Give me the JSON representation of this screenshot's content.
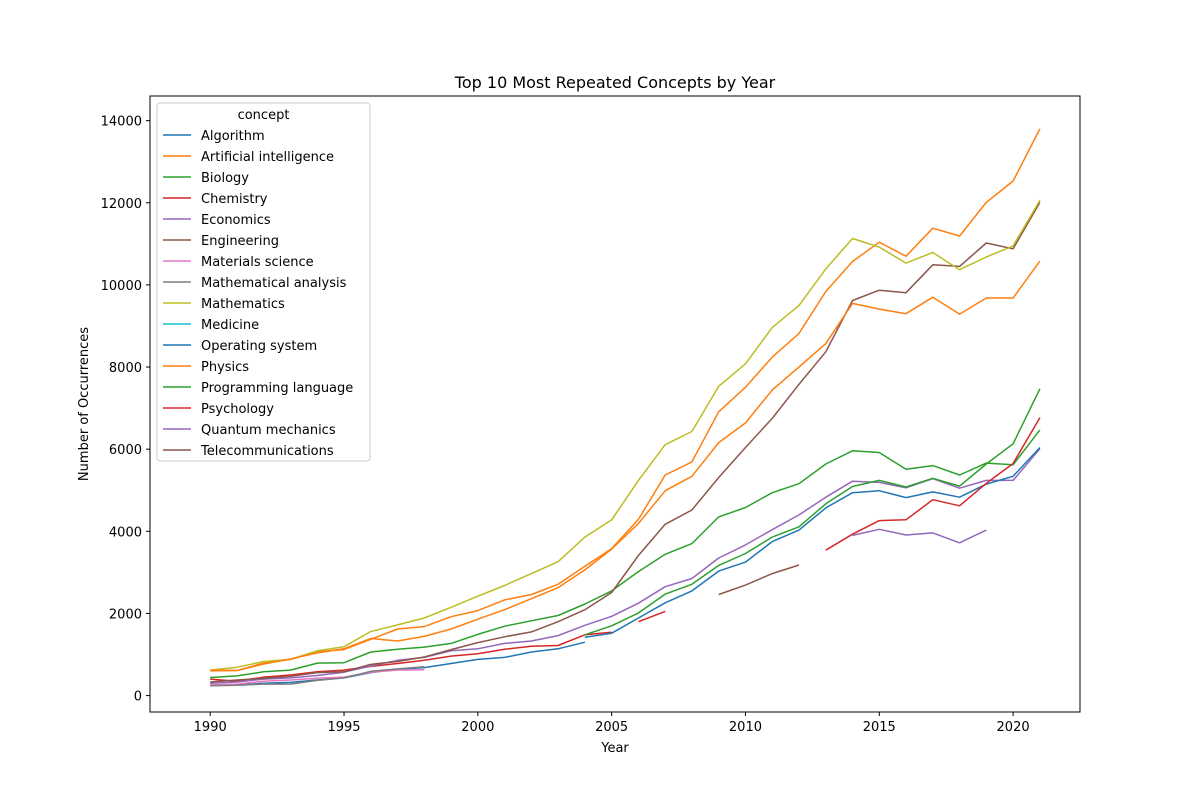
{
  "chart_data": {
    "type": "line",
    "title": "Top 10 Most Repeated Concepts by Year",
    "xlabel": "Year",
    "ylabel": "Number of Occurrences",
    "xlim": [
      1987.75,
      2022.5
    ],
    "ylim": [
      -400,
      14600
    ],
    "xticks": [
      1990,
      1995,
      2000,
      2005,
      2010,
      2015,
      2020
    ],
    "yticks": [
      0,
      2000,
      4000,
      6000,
      8000,
      10000,
      12000,
      14000
    ],
    "legend_title": "concept",
    "legend_position": "upper-left",
    "grid": false,
    "series": [
      {
        "name": "Algorithm",
        "color": "#1f77b4",
        "x": [
          1990,
          1991,
          1992,
          1993,
          1994,
          1995,
          1996,
          1997,
          1998,
          1999,
          2000,
          2001,
          2002,
          2003,
          2004
        ],
        "y": [
          250,
          260,
          300,
          320,
          380,
          430,
          560,
          640,
          680,
          780,
          880,
          930,
          1060,
          1140,
          1300
        ]
      },
      {
        "name": "Artificial intelligence",
        "color": "#ff7f0e",
        "x": [
          1990,
          1991,
          1992,
          1993,
          1994,
          1995,
          1996,
          1997,
          1998,
          1999,
          2000,
          2001,
          2002,
          2003,
          2004,
          2005,
          2006,
          2007,
          2008,
          2009,
          2010,
          2011,
          2012,
          2013,
          2014,
          2015,
          2016,
          2017,
          2018,
          2019,
          2020,
          2021
        ],
        "y": [
          600,
          610,
          790,
          880,
          1070,
          1120,
          1370,
          1620,
          1680,
          1920,
          2070,
          2330,
          2460,
          2710,
          3150,
          3580,
          4290,
          5370,
          5690,
          6910,
          7510,
          8240,
          8820,
          9840,
          10570,
          11040,
          10700,
          11380,
          11190,
          12010,
          12530,
          13800
        ]
      },
      {
        "name": "Biology",
        "color": "#2ca02c",
        "x": [
          1990,
          1991,
          1992,
          1993,
          1994,
          1995,
          1996,
          1997,
          1998,
          1999,
          2000,
          2001,
          2002,
          2003,
          2004,
          2005,
          2006,
          2007,
          2008,
          2009,
          2010,
          2011,
          2012,
          2013,
          2014,
          2015,
          2016,
          2017,
          2018,
          2019,
          2020,
          2021
        ],
        "y": [
          440,
          480,
          580,
          620,
          790,
          800,
          1060,
          1130,
          1180,
          1270,
          1490,
          1690,
          1820,
          1950,
          2230,
          2550,
          3020,
          3440,
          3700,
          4350,
          4580,
          4940,
          5160,
          5640,
          5960,
          5920,
          5510,
          5600,
          5370,
          5660,
          5620,
          6470
        ]
      },
      {
        "name": "Chemistry",
        "color": "#d62728",
        "x": [
          1990,
          1991,
          1992,
          1993,
          1994,
          1995,
          1996,
          1997,
          1998,
          1999,
          2000,
          2001,
          2002,
          2003,
          2004,
          2005
        ],
        "y": [
          400,
          350,
          450,
          500,
          580,
          620,
          710,
          780,
          860,
          960,
          1020,
          1130,
          1200,
          1220,
          1480,
          1540
        ]
      },
      {
        "name": "Economics",
        "color": "#9467bd",
        "x": [
          1990,
          1991,
          1992,
          1993,
          1994,
          1995,
          1996,
          1997,
          1998,
          1999,
          2000,
          2001,
          2002,
          2003,
          2004,
          2005,
          2006,
          2007,
          2008,
          2009,
          2010,
          2011,
          2012,
          2013,
          2014,
          2015,
          2016,
          2017,
          2018,
          2019,
          2020,
          2021
        ],
        "y": [
          300,
          330,
          400,
          430,
          490,
          570,
          720,
          860,
          930,
          1090,
          1140,
          1270,
          1330,
          1460,
          1710,
          1930,
          2250,
          2650,
          2850,
          3350,
          3670,
          4040,
          4400,
          4830,
          5220,
          5190,
          5060,
          5280,
          5050,
          5240,
          5240,
          6010
        ]
      },
      {
        "name": "Engineering",
        "color": "#8c564b",
        "x": [
          1990,
          1991,
          1992,
          1993,
          1994,
          1995,
          1996,
          1997,
          1998,
          1999,
          2000,
          2001,
          2002,
          2003,
          2004,
          2005,
          2006,
          2007,
          2008,
          2009,
          2010,
          2011,
          2012,
          2013,
          2014,
          2015,
          2016,
          2017,
          2018,
          2019,
          2020,
          2021
        ],
        "y": [
          330,
          380,
          420,
          470,
          560,
          580,
          760,
          830,
          940,
          1120,
          1290,
          1430,
          1550,
          1800,
          2090,
          2510,
          3410,
          4170,
          4520,
          5310,
          6040,
          6750,
          7580,
          8370,
          9620,
          9870,
          9810,
          10490,
          10450,
          11020,
          10880,
          12010
        ]
      },
      {
        "name": "Materials science",
        "color": "#e377c2",
        "x": [
          1990,
          1991,
          1992,
          1993,
          1994,
          1995,
          1996,
          1997,
          1998
        ],
        "y": [
          260,
          280,
          350,
          380,
          420,
          450,
          570,
          620,
          630
        ]
      },
      {
        "name": "Mathematical analysis",
        "color": "#7f7f7f",
        "x": [
          1990,
          1991,
          1992,
          1993,
          1994,
          1995,
          1996,
          1997,
          1998
        ],
        "y": [
          240,
          250,
          280,
          280,
          370,
          430,
          590,
          650,
          700
        ]
      },
      {
        "name": "Mathematics",
        "color": "#bcbd22",
        "x": [
          1990,
          1991,
          1992,
          1993,
          1994,
          1995,
          1996,
          1997,
          1998,
          1999,
          2000,
          2001,
          2002,
          2003,
          2004,
          2005,
          2006,
          2007,
          2008,
          2009,
          2010,
          2011,
          2012,
          2013,
          2014,
          2015,
          2016,
          2017,
          2018,
          2019,
          2020,
          2021
        ],
        "y": [
          620,
          690,
          830,
          880,
          1090,
          1190,
          1560,
          1720,
          1890,
          2150,
          2420,
          2680,
          2970,
          3260,
          3860,
          4280,
          5240,
          6110,
          6430,
          7530,
          8080,
          8960,
          9500,
          10390,
          11130,
          10920,
          10530,
          10790,
          10370,
          10680,
          10950,
          12060
        ]
      },
      {
        "name": "Medicine",
        "color": "#17becf",
        "x": [],
        "y": []
      },
      {
        "name": "Operating system",
        "color": "#1f77b4",
        "x": [
          2004,
          2005,
          2006,
          2007,
          2008,
          2009,
          2010,
          2011,
          2012,
          2013,
          2014,
          2015,
          2016,
          2017,
          2018,
          2019,
          2020,
          2021
        ],
        "y": [
          1420,
          1520,
          1890,
          2260,
          2550,
          3030,
          3250,
          3750,
          4030,
          4570,
          4940,
          4990,
          4820,
          4960,
          4830,
          5150,
          5340,
          6040
        ]
      },
      {
        "name": "Physics",
        "color": "#ff7f0e",
        "x": [
          1990,
          1991,
          1992,
          1993,
          1994,
          1995,
          1996,
          1997,
          1998,
          1999,
          2000,
          2001,
          2002,
          2003,
          2004,
          2005,
          2006,
          2007,
          2008,
          2009,
          2010,
          2011,
          2012,
          2013,
          2014,
          2015,
          2016,
          2017,
          2018,
          2019,
          2020,
          2021
        ],
        "y": [
          620,
          610,
          770,
          890,
          1040,
          1140,
          1390,
          1330,
          1440,
          1620,
          1860,
          2090,
          2360,
          2630,
          3060,
          3570,
          4190,
          4990,
          5340,
          6160,
          6640,
          7440,
          8000,
          8570,
          9550,
          9410,
          9300,
          9700,
          9290,
          9680,
          9680,
          10580
        ]
      },
      {
        "name": "Programming language",
        "color": "#2ca02c",
        "x": [
          2004,
          2005,
          2006,
          2007,
          2008,
          2009,
          2010,
          2011,
          2012,
          2013,
          2014,
          2015,
          2016,
          2017,
          2018,
          2019,
          2020,
          2021
        ],
        "y": [
          1480,
          1700,
          2010,
          2470,
          2710,
          3170,
          3460,
          3860,
          4110,
          4670,
          5090,
          5240,
          5080,
          5290,
          5100,
          5640,
          6130,
          7470
        ]
      },
      {
        "name": "Psychology",
        "color": "#d62728",
        "x": [
          2006,
          2007,
          2008,
          2009,
          2010,
          2011,
          2012,
          2013,
          2014,
          2015,
          2016,
          2017,
          2018,
          2019,
          2020,
          2021
        ],
        "y": [
          1800,
          2050,
          null,
          null,
          null,
          null,
          null,
          3540,
          3930,
          4260,
          4280,
          4770,
          4620,
          5170,
          5650,
          6770
        ]
      },
      {
        "name": "Quantum mechanics",
        "color": "#9467bd",
        "x": [
          2014,
          2015,
          2016,
          2017,
          2018,
          2019
        ],
        "y": [
          3900,
          4050,
          3910,
          3960,
          3720,
          4030
        ]
      },
      {
        "name": "Telecommunications",
        "color": "#8c564b",
        "x": [
          2009,
          2010,
          2011,
          2012
        ],
        "y": [
          2460,
          2690,
          2970,
          3180
        ]
      }
    ]
  }
}
